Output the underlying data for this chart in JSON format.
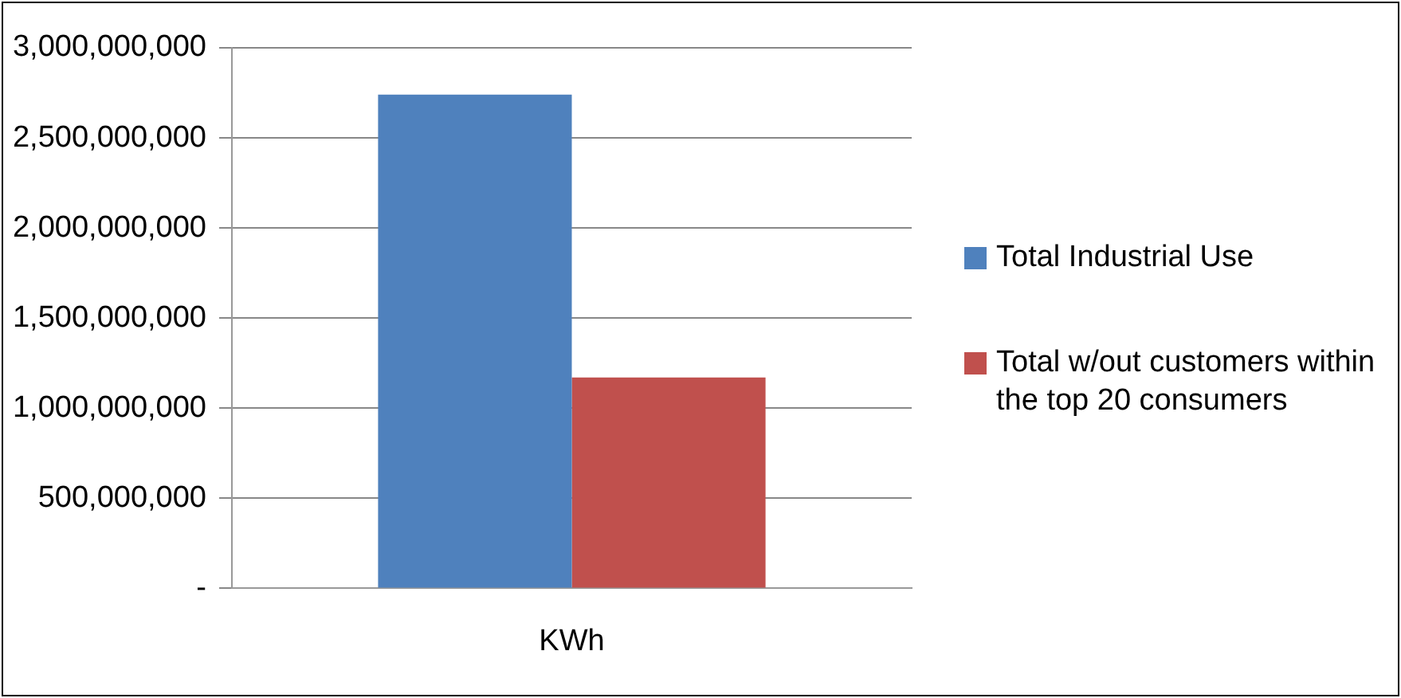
{
  "chart_data": {
    "type": "bar",
    "categories": [
      "KWh"
    ],
    "series": [
      {
        "name": "Total Industrial Use",
        "color": "#4f81bd",
        "values": [
          2740000000
        ]
      },
      {
        "name": "Total w/out customers within the top 20 consumers",
        "color": "#c0504d",
        "values": [
          1170000000
        ]
      }
    ],
    "ylim": [
      0,
      3000000000
    ],
    "yticks": [
      {
        "value": 0,
        "label": "-"
      },
      {
        "value": 500000000,
        "label": "500,000,000"
      },
      {
        "value": 1000000000,
        "label": "1,000,000,000"
      },
      {
        "value": 1500000000,
        "label": "1,500,000,000"
      },
      {
        "value": 2000000000,
        "label": "2,000,000,000"
      },
      {
        "value": 2500000000,
        "label": "2,500,000,000"
      },
      {
        "value": 3000000000,
        "label": "3,000,000,000"
      }
    ],
    "grid": "y",
    "legend": "right"
  }
}
